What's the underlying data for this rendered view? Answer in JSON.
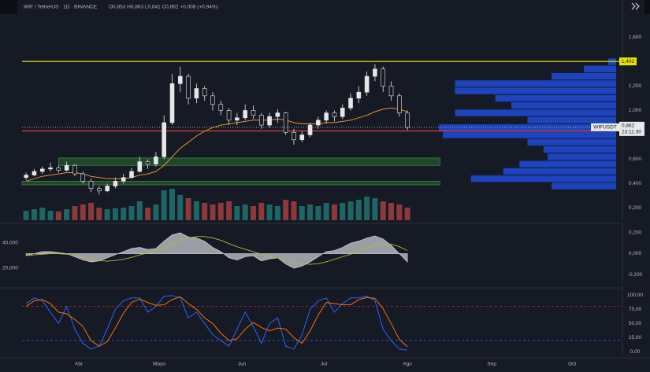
{
  "chart_data": [
    {
      "type": "candlestick",
      "title": "WIF / TetherUS · 1D · BINANCE",
      "subtitle": "O0,853 H0,863 L0,841 C0,862 +0,008 (+0,94%)",
      "open": [
        0.45,
        0.47,
        0.5,
        0.52,
        0.53,
        0.51,
        0.55,
        0.48,
        0.42,
        0.36,
        0.34,
        0.38,
        0.42,
        0.45,
        0.5,
        0.58,
        0.56,
        0.62,
        0.9,
        1.22,
        1.28,
        1.1,
        1.18,
        1.12,
        1.05,
        1.0,
        0.92,
        0.94,
        1.0,
        0.96,
        0.88,
        0.95,
        0.98,
        0.82,
        0.76,
        0.8,
        0.88,
        0.92,
        0.98,
        0.95,
        1.02,
        1.1,
        1.15,
        1.28,
        1.34,
        1.2,
        1.12,
        0.98
      ],
      "high": [
        0.49,
        0.52,
        0.54,
        0.57,
        0.55,
        0.58,
        0.56,
        0.5,
        0.44,
        0.38,
        0.4,
        0.45,
        0.48,
        0.53,
        0.62,
        0.6,
        0.66,
        0.96,
        1.3,
        1.36,
        1.3,
        1.22,
        1.2,
        1.15,
        1.08,
        1.02,
        0.98,
        1.05,
        1.04,
        0.98,
        0.98,
        1.01,
        0.99,
        0.85,
        0.83,
        0.9,
        0.95,
        1.0,
        1.0,
        1.05,
        1.14,
        1.2,
        1.32,
        1.38,
        1.36,
        1.24,
        1.14,
        1.0
      ],
      "low": [
        0.43,
        0.46,
        0.48,
        0.5,
        0.49,
        0.5,
        0.46,
        0.4,
        0.33,
        0.31,
        0.33,
        0.36,
        0.4,
        0.44,
        0.49,
        0.52,
        0.54,
        0.6,
        0.88,
        1.15,
        1.05,
        1.06,
        1.08,
        1.0,
        0.96,
        0.88,
        0.88,
        0.92,
        0.93,
        0.85,
        0.86,
        0.9,
        0.8,
        0.72,
        0.74,
        0.78,
        0.85,
        0.89,
        0.91,
        0.93,
        1.0,
        1.06,
        1.12,
        1.24,
        1.15,
        1.08,
        0.95,
        0.84
      ],
      "close": [
        0.47,
        0.5,
        0.52,
        0.53,
        0.51,
        0.55,
        0.48,
        0.42,
        0.36,
        0.34,
        0.38,
        0.42,
        0.45,
        0.5,
        0.58,
        0.56,
        0.62,
        0.9,
        1.22,
        1.28,
        1.1,
        1.18,
        1.12,
        1.05,
        1.0,
        0.92,
        0.94,
        1.0,
        0.96,
        0.88,
        0.95,
        0.98,
        0.82,
        0.76,
        0.8,
        0.88,
        0.92,
        0.98,
        0.95,
        1.02,
        1.1,
        1.15,
        1.28,
        1.34,
        1.2,
        1.12,
        0.98,
        0.86
      ],
      "volume": [
        30,
        35,
        40,
        30,
        28,
        35,
        45,
        50,
        55,
        40,
        35,
        38,
        40,
        45,
        60,
        40,
        50,
        95,
        100,
        80,
        70,
        60,
        55,
        50,
        55,
        60,
        45,
        50,
        45,
        55,
        50,
        45,
        65,
        60,
        45,
        50,
        45,
        55,
        50,
        55,
        60,
        65,
        75,
        70,
        60,
        55,
        50,
        40
      ],
      "ma": {
        "color": "#e0912f",
        "values": [
          0.42,
          0.44,
          0.46,
          0.47,
          0.48,
          0.49,
          0.49,
          0.48,
          0.46,
          0.45,
          0.44,
          0.44,
          0.44,
          0.45,
          0.47,
          0.48,
          0.5,
          0.55,
          0.62,
          0.69,
          0.74,
          0.79,
          0.83,
          0.86,
          0.88,
          0.89,
          0.9,
          0.91,
          0.92,
          0.92,
          0.92,
          0.93,
          0.92,
          0.9,
          0.89,
          0.89,
          0.89,
          0.9,
          0.9,
          0.91,
          0.92,
          0.94,
          0.96,
          0.99,
          1.01,
          1.02,
          1.01,
          0.99
        ]
      },
      "up_color": "#26a69a",
      "down_color": "#ef5350",
      "candle_color": "#e6e6e6",
      "hlines": [
        {
          "value": 1.402,
          "label": "1,402",
          "color": "#e5e100"
        },
        {
          "value": 0.832,
          "color": "#e53935"
        }
      ],
      "zones": [
        {
          "from": 0.55,
          "to": 0.61,
          "start": 4,
          "end": 51
        },
        {
          "from": 0.39,
          "to": 0.42,
          "start": -0.5,
          "end": 51
        }
      ],
      "zone_color": "#2e7d32",
      "last_price": {
        "value": 0.862,
        "label": "0,862",
        "symbol": "WIFUSDT",
        "countdown": "23:11:30"
      },
      "volume_profile": {
        "color": "#1e4bd8",
        "levels": [
          1.4,
          1.34,
          1.28,
          1.22,
          1.16,
          1.1,
          1.04,
          0.98,
          0.92,
          0.86,
          0.8,
          0.74,
          0.68,
          0.62,
          0.56,
          0.5,
          0.44,
          0.38
        ],
        "values": [
          10,
          40,
          80,
          200,
          200,
          150,
          130,
          200,
          110,
          220,
          215,
          110,
          90,
          85,
          120,
          140,
          180,
          80
        ]
      },
      "xlim": [
        -0.5,
        73.5
      ],
      "xticks": [
        {
          "value": 6.5,
          "label": "Abr"
        },
        {
          "value": 16.4,
          "label": "Mayo"
        },
        {
          "value": 26.6,
          "label": "Jun"
        },
        {
          "value": 36.7,
          "label": "Jul"
        },
        {
          "value": 47,
          "label": "Ago"
        },
        {
          "value": 57.4,
          "label": "Sep"
        },
        {
          "value": 67.3,
          "label": "Oct"
        }
      ],
      "ylim": [
        0.1,
        1.68
      ],
      "yticks": [
        {
          "value": 1.6,
          "label": "1,600"
        },
        {
          "value": 1.2,
          "label": "1,200"
        },
        {
          "value": 1.0,
          "label": "1,000"
        },
        {
          "value": 0.6,
          "label": "0,600"
        },
        {
          "value": 0.4,
          "label": "0,400"
        },
        {
          "value": 0.2,
          "label": "0,200"
        }
      ]
    },
    {
      "type": "area",
      "series": [
        {
          "color": "#c9cbd0",
          "values": [
            -0.02,
            0.0,
            0.02,
            0.02,
            0.01,
            0.0,
            -0.03,
            -0.06,
            -0.08,
            -0.07,
            -0.04,
            -0.01,
            0.02,
            0.05,
            0.06,
            0.04,
            0.05,
            0.12,
            0.18,
            0.2,
            0.16,
            0.15,
            0.12,
            0.06,
            0.02,
            -0.04,
            -0.06,
            -0.03,
            -0.02,
            -0.07,
            -0.05,
            -0.04,
            -0.1,
            -0.14,
            -0.12,
            -0.08,
            -0.03,
            0.02,
            0.03,
            0.06,
            0.1,
            0.12,
            0.15,
            0.17,
            0.14,
            0.08,
            0.0,
            -0.08
          ]
        },
        {
          "color": "#b5b83a",
          "axis": "y2",
          "values": [
            30000,
            30500,
            31000,
            31500,
            31500,
            31000,
            30000,
            28500,
            27000,
            26000,
            25500,
            26000,
            27000,
            28500,
            30500,
            32000,
            33500,
            36000,
            39000,
            42000,
            44000,
            45000,
            45000,
            44000,
            42000,
            39500,
            37000,
            35000,
            33000,
            31000,
            29500,
            28000,
            26500,
            24500,
            23500,
            23000,
            23500,
            25000,
            27000,
            29000,
            31000,
            33500,
            36000,
            38500,
            39500,
            39000,
            37000,
            34000
          ]
        }
      ],
      "ylim": [
        -0.32,
        0.26
      ],
      "yticks": [
        {
          "value": 0.2,
          "label": "0,200"
        },
        {
          "value": 0,
          "label": "0,000"
        },
        {
          "value": -0.2,
          "label": "-0,200"
        }
      ],
      "y2lim": [
        5000,
        53000
      ],
      "y2ticks": [
        {
          "value": 40000,
          "label": "40,000"
        },
        {
          "value": 20000,
          "label": "20,000"
        }
      ]
    },
    {
      "type": "line",
      "series": [
        {
          "color": "#2962ff",
          "values": [
            85,
            95,
            90,
            70,
            50,
            80,
            40,
            15,
            5,
            10,
            40,
            75,
            90,
            95,
            95,
            70,
            80,
            98,
            99,
            95,
            60,
            70,
            50,
            30,
            20,
            10,
            40,
            70,
            45,
            15,
            50,
            60,
            10,
            5,
            30,
            75,
            90,
            95,
            70,
            85,
            95,
            95,
            98,
            90,
            40,
            20,
            5,
            3
          ]
        },
        {
          "color": "#ff6d00",
          "values": [
            80,
            90,
            92,
            85,
            70,
            67,
            57,
            45,
            20,
            10,
            18,
            42,
            68,
            87,
            93,
            87,
            82,
            83,
            92,
            97,
            85,
            75,
            60,
            50,
            33,
            20,
            23,
            40,
            52,
            43,
            37,
            42,
            40,
            25,
            15,
            37,
            65,
            87,
            85,
            83,
            83,
            92,
            96,
            94,
            76,
            50,
            22,
            9
          ]
        }
      ],
      "bands": [
        {
          "value": 80,
          "color": "#b2283a"
        },
        {
          "value": 20,
          "color": "#2962ff"
        }
      ],
      "ylim": [
        -5,
        110
      ],
      "yticks": [
        {
          "value": 100,
          "label": "100,00"
        },
        {
          "value": 75,
          "label": "75,00"
        },
        {
          "value": 50,
          "label": "50,00"
        },
        {
          "value": 25,
          "label": "25,00"
        },
        {
          "value": 0,
          "label": "0,00"
        }
      ]
    }
  ]
}
